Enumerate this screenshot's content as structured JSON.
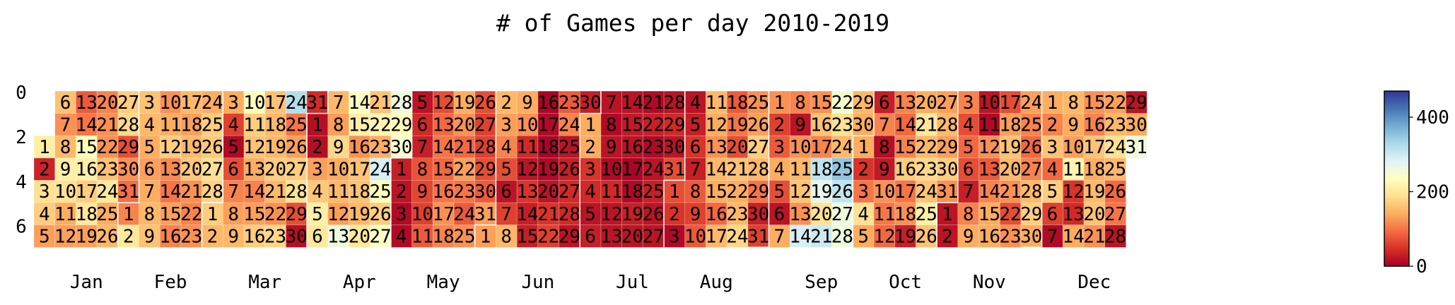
{
  "chart_data": {
    "type": "heatmap",
    "title": "# of Games per day 2010-2019",
    "layout": "calendar-weeks-by-weekday",
    "year_layout": 2019,
    "months": [
      "Jan",
      "Feb",
      "Mar",
      "Apr",
      "May",
      "Jun",
      "Jul",
      "Aug",
      "Sep",
      "Oct",
      "Nov",
      "Dec"
    ],
    "y_ticks": [
      "0",
      "2",
      "4",
      "6"
    ],
    "colorbar": {
      "ticks": [
        "0",
        "200",
        "400"
      ],
      "range": [
        0,
        470
      ],
      "colormap": "RdYlBu"
    },
    "values_by_month": [
      [
        210,
        35,
        190,
        170,
        130,
        160,
        120,
        150,
        210,
        190,
        140,
        130,
        80,
        100,
        230,
        210,
        170,
        200,
        130,
        110,
        120,
        120,
        160,
        200,
        140,
        150,
        170,
        180,
        70,
        120,
        95
      ],
      [
        110,
        200,
        160,
        150,
        140,
        130,
        140,
        150,
        160,
        120,
        140,
        170,
        115,
        100,
        130,
        110,
        150,
        130,
        150,
        165,
        120,
        110,
        120,
        140,
        170,
        165,
        190,
        175
      ],
      [
        170,
        150,
        140,
        60,
        10,
        70,
        110,
        130,
        150,
        230,
        170,
        160,
        140,
        110,
        130,
        170,
        160,
        150,
        150,
        170,
        150,
        120,
        180,
        320,
        100,
        130,
        170,
        190,
        70,
        15,
        40
      ],
      [
        15,
        15,
        130,
        165,
        210,
        200,
        150,
        130,
        180,
        140,
        150,
        130,
        260,
        240,
        210,
        120,
        160,
        160,
        150,
        200,
        160,
        220,
        140,
        290,
        230,
        170,
        240,
        260,
        230,
        250
      ],
      [
        30,
        20,
        10,
        10,
        20,
        40,
        30,
        75,
        65,
        60,
        80,
        70,
        90,
        100,
        90,
        100,
        120,
        110,
        140,
        120,
        90,
        130,
        100,
        80,
        120,
        70,
        60,
        60,
        70,
        80,
        130
      ],
      [
        130,
        150,
        130,
        110,
        70,
        20,
        60,
        150,
        140,
        120,
        40,
        20,
        50,
        30,
        30,
        5,
        10,
        5,
        10,
        20,
        50,
        60,
        80,
        110,
        20,
        30,
        40,
        40,
        20,
        30
      ],
      [
        140,
        140,
        50,
        40,
        20,
        30,
        20,
        10,
        20,
        10,
        40,
        20,
        20,
        20,
        25,
        20,
        5,
        10,
        30,
        20,
        10,
        30,
        10,
        20,
        30,
        20,
        20,
        20,
        40,
        20,
        70
      ],
      [
        70,
        50,
        10,
        20,
        30,
        50,
        30,
        80,
        60,
        80,
        150,
        140,
        120,
        150,
        140,
        90,
        150,
        80,
        100,
        70,
        160,
        140,
        150,
        180,
        120,
        130,
        170,
        150,
        100,
        30,
        60
      ],
      [
        120,
        60,
        80,
        140,
        70,
        20,
        140,
        110,
        20,
        120,
        150,
        160,
        120,
        290,
        120,
        160,
        110,
        310,
        270,
        190,
        300,
        250,
        190,
        150,
        350,
        310,
        260,
        260,
        150,
        140
      ],
      [
        140,
        50,
        100,
        190,
        140,
        30,
        110,
        15,
        25,
        120,
        100,
        90,
        110,
        90,
        110,
        170,
        100,
        120,
        30,
        140,
        200,
        150,
        180,
        160,
        210,
        160,
        130,
        150,
        130,
        170,
        120
      ],
      [
        20,
        20,
        110,
        70,
        90,
        70,
        30,
        110,
        140,
        20,
        10,
        120,
        80,
        110,
        140,
        140,
        70,
        130,
        160,
        150,
        120,
        70,
        120,
        130,
        110,
        90,
        110,
        150,
        170,
        140
      ],
      [
        140,
        110,
        160,
        90,
        170,
        60,
        10,
        150,
        140,
        130,
        220,
        50,
        40,
        140,
        120,
        110,
        160,
        140,
        150,
        160,
        120,
        130,
        150,
        190,
        150,
        90,
        100,
        20,
        20,
        140,
        260
      ]
    ]
  }
}
